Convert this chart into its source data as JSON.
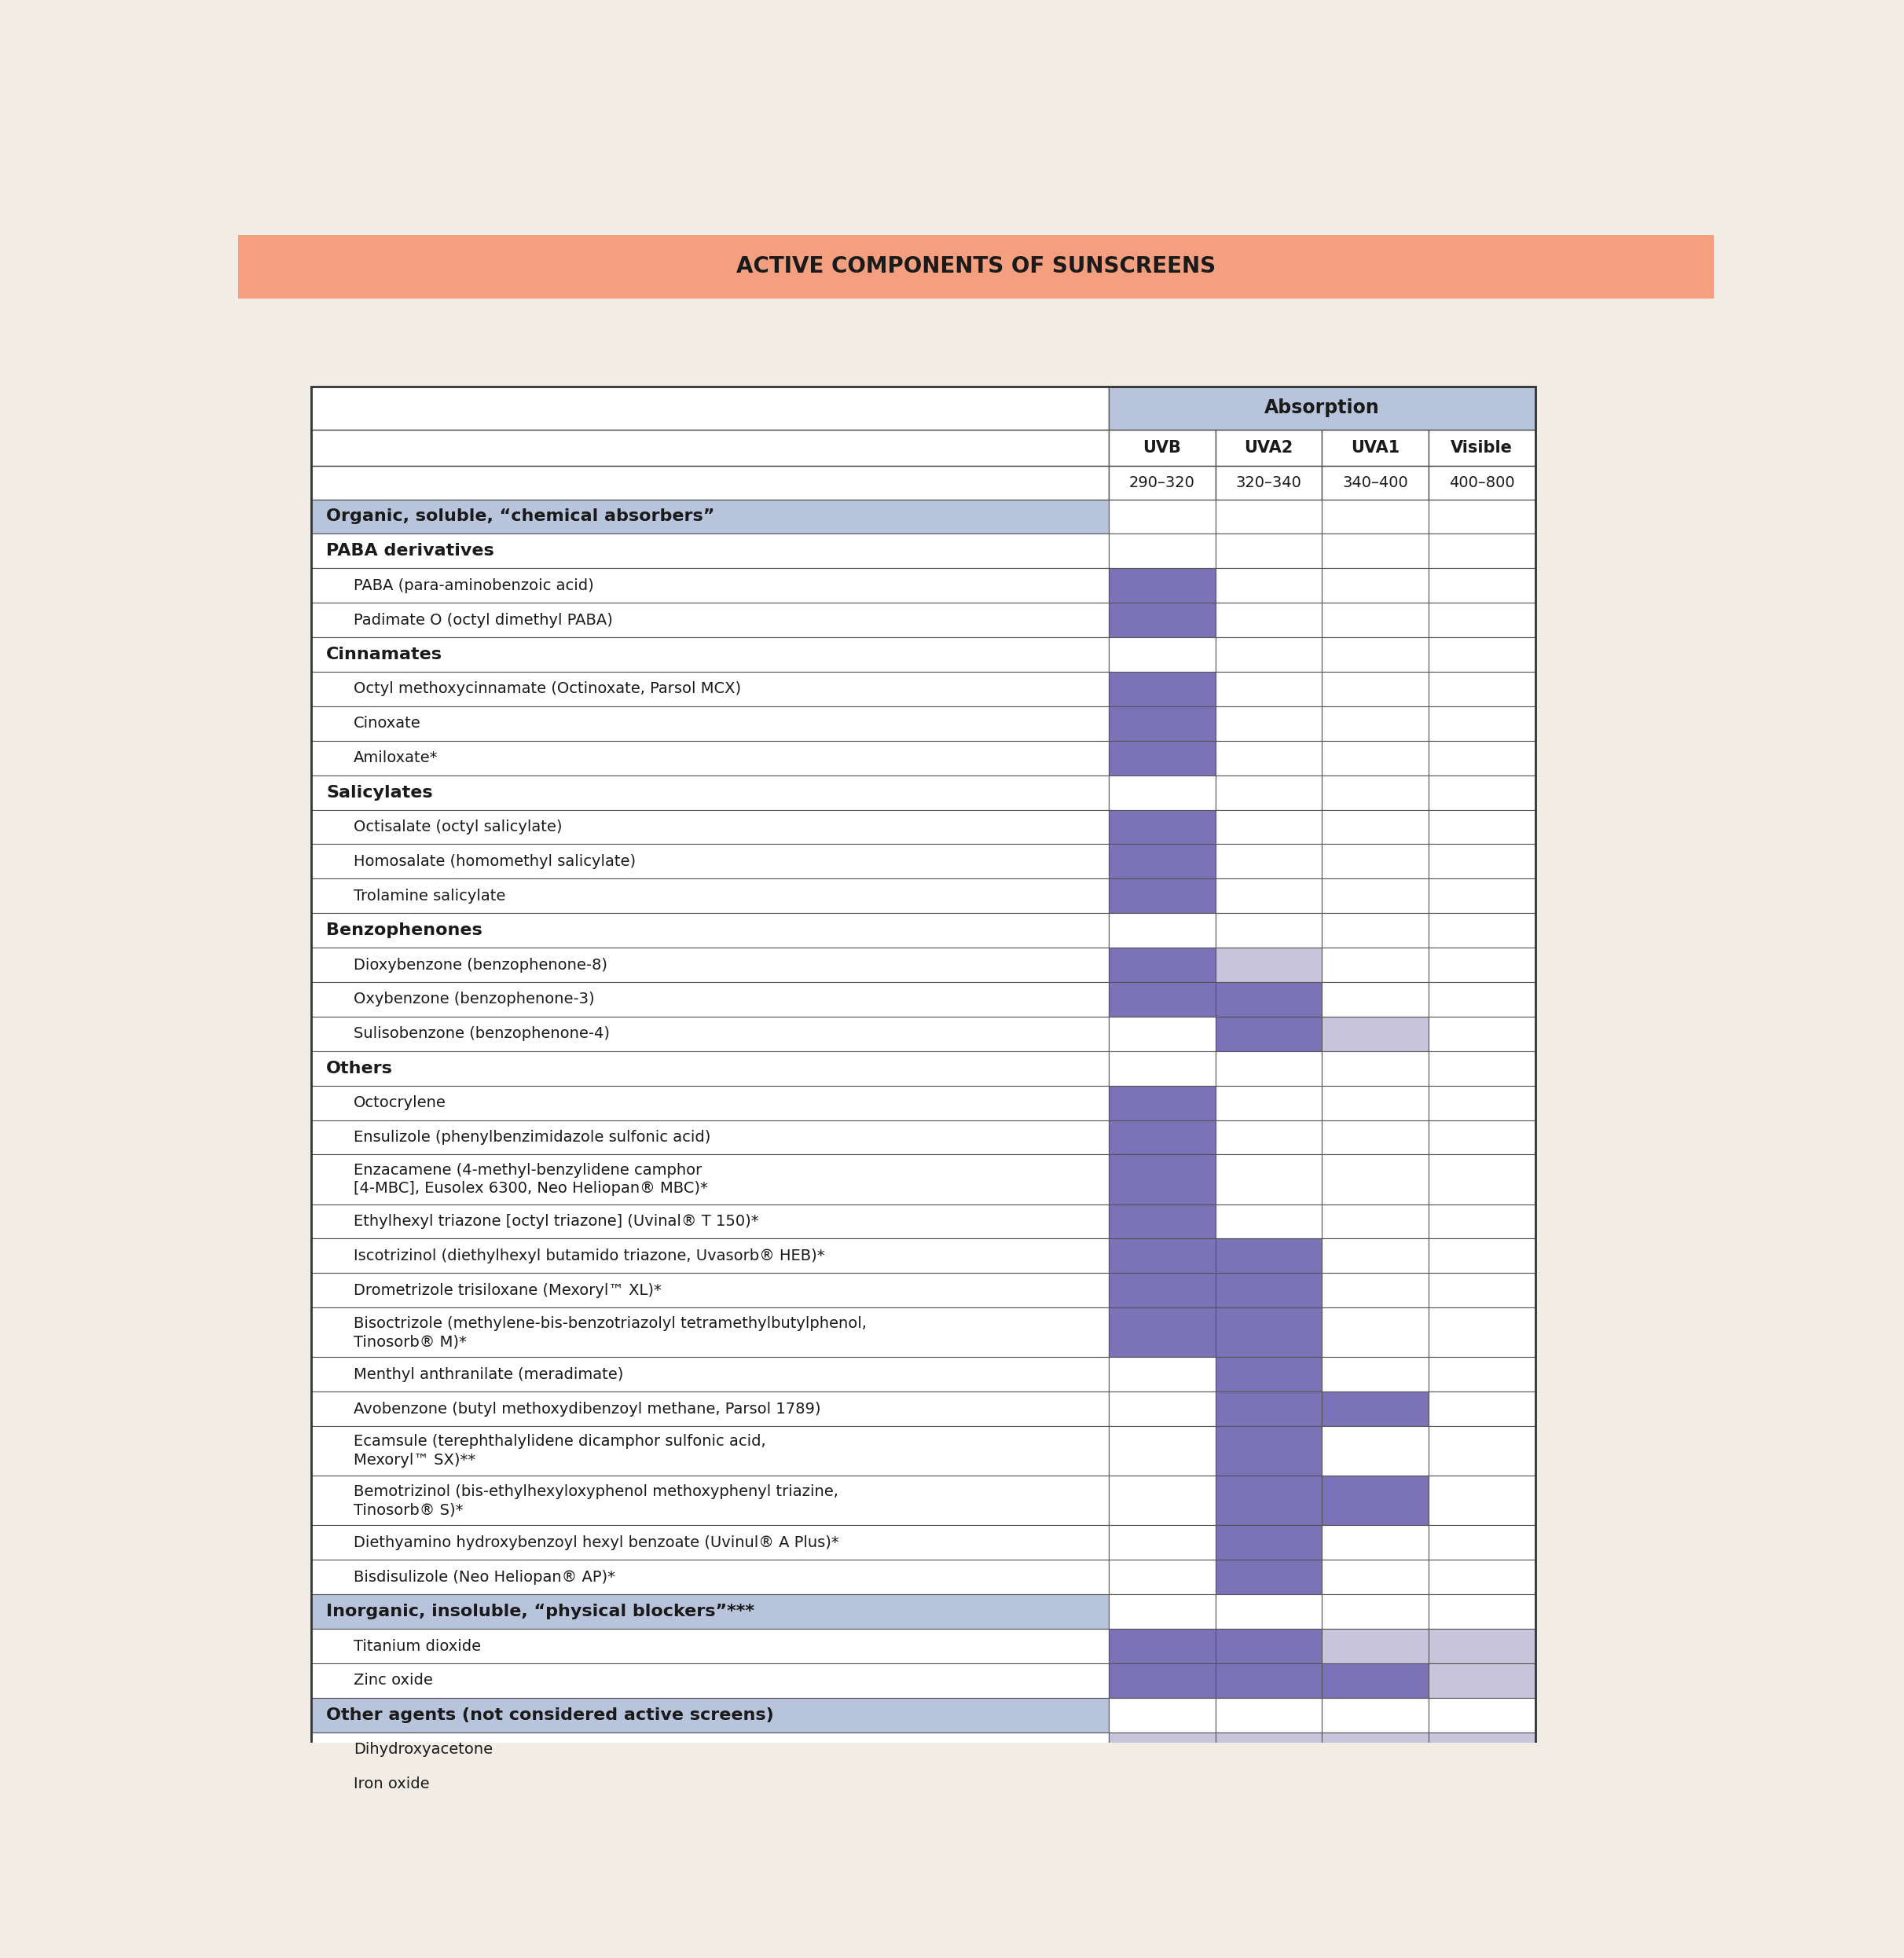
{
  "title": "ACTIVE COMPONENTS OF SUNSCREENS",
  "title_bg": "#F4A080",
  "title_color": "#1A1A1A",
  "bg_color": "#F2EDE4",
  "header_absorption_bg": "#B8C4DC",
  "category_bg": "#B8C4DC",
  "fill_dark": "#7B72B8",
  "fill_light": "#C8C4DC",
  "rows": [
    {
      "label": "Organic, soluble, “chemical absorbers”",
      "type": "category",
      "uvb": 0,
      "uva2": 0,
      "uva1": 0,
      "vis": 0
    },
    {
      "label": "PABA derivatives",
      "type": "subcat",
      "uvb": 0,
      "uva2": 0,
      "uva1": 0,
      "vis": 0
    },
    {
      "label": "PABA (para-aminobenzoic acid)",
      "type": "item",
      "uvb": 1,
      "uva2": 0,
      "uva1": 0,
      "vis": 0
    },
    {
      "label": "Padimate O (octyl dimethyl PABA)",
      "type": "item",
      "uvb": 1,
      "uva2": 0,
      "uva1": 0,
      "vis": 0
    },
    {
      "label": "Cinnamates",
      "type": "subcat",
      "uvb": 0,
      "uva2": 0,
      "uva1": 0,
      "vis": 0
    },
    {
      "label": "Octyl methoxycinnamate (Octinoxate, Parsol MCX)",
      "type": "item",
      "uvb": 1,
      "uva2": 0,
      "uva1": 0,
      "vis": 0
    },
    {
      "label": "Cinoxate",
      "type": "item",
      "uvb": 1,
      "uva2": 0,
      "uva1": 0,
      "vis": 0
    },
    {
      "label": "Amiloxate*",
      "type": "item",
      "uvb": 1,
      "uva2": 0,
      "uva1": 0,
      "vis": 0
    },
    {
      "label": "Salicylates",
      "type": "subcat",
      "uvb": 0,
      "uva2": 0,
      "uva1": 0,
      "vis": 0
    },
    {
      "label": "Octisalate (octyl salicylate)",
      "type": "item",
      "uvb": 1,
      "uva2": 0,
      "uva1": 0,
      "vis": 0
    },
    {
      "label": "Homosalate (homomethyl salicylate)",
      "type": "item",
      "uvb": 1,
      "uva2": 0,
      "uva1": 0,
      "vis": 0
    },
    {
      "label": "Trolamine salicylate",
      "type": "item",
      "uvb": 1,
      "uva2": 0,
      "uva1": 0,
      "vis": 0
    },
    {
      "label": "Benzophenones",
      "type": "subcat",
      "uvb": 0,
      "uva2": 0,
      "uva1": 0,
      "vis": 0
    },
    {
      "label": "Dioxybenzone (benzophenone-8)",
      "type": "item",
      "uvb": 1,
      "uva2": 2,
      "uva1": 0,
      "vis": 0
    },
    {
      "label": "Oxybenzone (benzophenone-3)",
      "type": "item",
      "uvb": 1,
      "uva2": 1,
      "uva1": 0,
      "vis": 0
    },
    {
      "label": "Sulisobenzone (benzophenone-4)",
      "type": "item",
      "uvb": 0,
      "uva2": 1,
      "uva1": 2,
      "vis": 0
    },
    {
      "label": "Others",
      "type": "subcat",
      "uvb": 0,
      "uva2": 0,
      "uva1": 0,
      "vis": 0
    },
    {
      "label": "Octocrylene",
      "type": "item",
      "uvb": 1,
      "uva2": 0,
      "uva1": 0,
      "vis": 0
    },
    {
      "label": "Ensulizole (phenylbenzimidazole sulfonic acid)",
      "type": "item",
      "uvb": 1,
      "uva2": 0,
      "uva1": 0,
      "vis": 0
    },
    {
      "label": "Enzacamene (4-methyl-benzylidene camphor\n[4-MBC], Eusolex 6300, Neo Heliopan® MBC)*",
      "type": "item2",
      "uvb": 1,
      "uva2": 0,
      "uva1": 0,
      "vis": 0
    },
    {
      "label": "Ethylhexyl triazone [octyl triazone] (Uvinal® T 150)*",
      "type": "item",
      "uvb": 1,
      "uva2": 0,
      "uva1": 0,
      "vis": 0
    },
    {
      "label": "Iscotrizinol (diethylhexyl butamido triazone, Uvasorb® HEB)*",
      "type": "item",
      "uvb": 1,
      "uva2": 1,
      "uva1": 0,
      "vis": 0
    },
    {
      "label": "Drometrizole trisiloxane (Mexoryl™ XL)*",
      "type": "item",
      "uvb": 1,
      "uva2": 1,
      "uva1": 0,
      "vis": 0
    },
    {
      "label": "Bisoctrizole (methylene-bis-benzotriazolyl tetramethylbutylphenol,\nTinosorb® M)*",
      "type": "item2",
      "uvb": 1,
      "uva2": 1,
      "uva1": 0,
      "vis": 0
    },
    {
      "label": "Menthyl anthranilate (meradimate)",
      "type": "item",
      "uvb": 0,
      "uva2": 1,
      "uva1": 0,
      "vis": 0
    },
    {
      "label": "Avobenzone (butyl methoxydibenzoyl methane, Parsol 1789)",
      "type": "item",
      "uvb": 0,
      "uva2": 1,
      "uva1": 1,
      "vis": 0
    },
    {
      "label": "Ecamsule (terephthalylidene dicamphor sulfonic acid,\nMexoryl™ SX)**",
      "type": "item2",
      "uvb": 0,
      "uva2": 1,
      "uva1": 0,
      "vis": 0
    },
    {
      "label": "Bemotrizinol (bis-ethylhexyloxyphenol methoxyphenyl triazine,\nTinosorb® S)*",
      "type": "item2",
      "uvb": 0,
      "uva2": 1,
      "uva1": 1,
      "vis": 0
    },
    {
      "label": "Diethyamino hydroxybenzoyl hexyl benzoate (Uvinul® A Plus)*",
      "type": "item",
      "uvb": 0,
      "uva2": 1,
      "uva1": 0,
      "vis": 0
    },
    {
      "label": "Bisdisulizole (Neo Heliopan® AP)*",
      "type": "item",
      "uvb": 0,
      "uva2": 1,
      "uva1": 0,
      "vis": 0
    },
    {
      "label": "Inorganic, insoluble, “physical blockers”***",
      "type": "category",
      "uvb": 0,
      "uva2": 0,
      "uva1": 0,
      "vis": 0
    },
    {
      "label": "Titanium dioxide",
      "type": "item",
      "uvb": 1,
      "uva2": 1,
      "uva1": 2,
      "vis": 2
    },
    {
      "label": "Zinc oxide",
      "type": "item",
      "uvb": 1,
      "uva2": 1,
      "uva1": 1,
      "vis": 2
    },
    {
      "label": "Other agents (not considered active screens)",
      "type": "category",
      "uvb": 0,
      "uva2": 0,
      "uva1": 0,
      "vis": 0
    },
    {
      "label": "Dihydroxyacetone",
      "type": "item",
      "uvb": 2,
      "uva2": 2,
      "uva1": 2,
      "vis": 2
    },
    {
      "label": "Iron oxide",
      "type": "item",
      "uvb": 2,
      "uva2": 2,
      "uva1": 2,
      "vis": 2
    }
  ]
}
